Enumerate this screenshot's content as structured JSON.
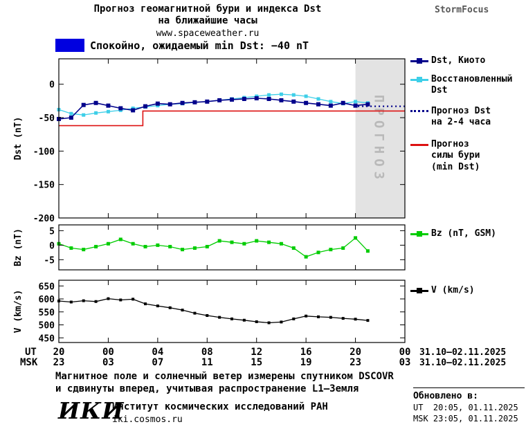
{
  "header": {
    "title_line1": "Прогноз геомагнитной бури и индекса Dst",
    "title_line2": "на ближайшие часы",
    "site": "www.spaceweather.ru",
    "brand": "StormFocus"
  },
  "status_banner": {
    "text": "Спокойно, ожидаемый min Dst: −40 nT",
    "color": "#0000e0"
  },
  "forecast_label": "ПРОГНОЗ",
  "colors": {
    "dst_kyoto": "#00008B",
    "dst_reconstructed": "#3ECFE8",
    "dst_forecast_dotted": "#00008B",
    "storm_forecast": "#DD1111",
    "bz": "#00CC00",
    "v": "#000000",
    "forecast_region_bg": "#E3E3E3",
    "forecast_region_text": "#B9B9B9"
  },
  "legend_dst": {
    "items": [
      {
        "label": "Dst, Киото",
        "color": "#00008B"
      },
      {
        "label": "Восстановленный Dst",
        "color": "#3ECFE8"
      },
      {
        "label": "Прогноз Dst на 2-4 часа",
        "color": "#00008B"
      },
      {
        "label": "Прогноз силы бури (min Dst)",
        "color": "#DD1111"
      }
    ]
  },
  "legend_bz": {
    "label": "Bz (nT, GSM)",
    "color": "#00CC00"
  },
  "legend_v": {
    "label": "V (km/s)",
    "color": "#000000"
  },
  "xaxis": {
    "row1_label": "UT",
    "row2_label": "MSK",
    "tick_hours": [
      0,
      4,
      8,
      12,
      16,
      20,
      24,
      28
    ],
    "row1_ticks": [
      "20",
      "00",
      "04",
      "08",
      "12",
      "16",
      "20",
      "00"
    ],
    "row2_ticks": [
      "23",
      "03",
      "07",
      "11",
      "15",
      "19",
      "23",
      "03"
    ],
    "row1_date": "31.10–02.11.2025",
    "row2_date": "31.10–02.11.2025"
  },
  "chart_data": [
    {
      "type": "line",
      "name": "dst-panel",
      "ylabel": "Dst (nT)",
      "ylim": [
        -200,
        38
      ],
      "yticks": [
        0,
        -50,
        -100,
        -150,
        -200
      ],
      "xlim_hours": [
        0,
        28
      ],
      "forecast_region": [
        24,
        28
      ],
      "x": [
        0,
        1,
        2,
        3,
        4,
        5,
        6,
        7,
        8,
        9,
        10,
        11,
        12,
        13,
        14,
        15,
        16,
        17,
        18,
        19,
        20,
        21,
        22,
        23,
        24,
        25
      ],
      "series": [
        {
          "name": "Прогноз силы бури (min Dst)",
          "color": "#DD1111",
          "width": 1.6,
          "x": [
            0,
            6.8,
            6.8,
            28
          ],
          "y": [
            -62,
            -62,
            -40,
            -40
          ]
        },
        {
          "name": "Прогноз Dst на 2-4 часа",
          "color": "#00008B",
          "style": "dotted",
          "x": [
            24.2,
            28
          ],
          "y": [
            -33,
            -33
          ]
        },
        {
          "name": "Восстановленный Dst",
          "color": "#3ECFE8",
          "marker": "square",
          "marker_size": 5,
          "width": 1.3,
          "y": [
            -38,
            -44,
            -46,
            -43,
            -41,
            -39,
            -36,
            -34,
            -32,
            -30,
            -29,
            -27,
            -26,
            -24,
            -22,
            -20,
            -18,
            -16,
            -15,
            -16,
            -18,
            -22,
            -26,
            -29,
            -26,
            -28
          ]
        },
        {
          "name": "Dst, Киото",
          "color": "#00008B",
          "marker": "square",
          "marker_size": 6,
          "width": 1.6,
          "y": [
            -52,
            -50,
            -31,
            -28,
            -32,
            -36,
            -39,
            -33,
            -29,
            -30,
            -28,
            -27,
            -26,
            -24,
            -23,
            -22,
            -21,
            -22,
            -24,
            -26,
            -28,
            -30,
            -32,
            -28,
            -32,
            -30
          ]
        }
      ]
    },
    {
      "type": "line",
      "name": "bz-panel",
      "ylabel": "Bz (nT)",
      "ylim": [
        -8.5,
        7
      ],
      "yticks": [
        5,
        0,
        -5
      ],
      "xlim_hours": [
        0,
        28
      ],
      "x": [
        0,
        1,
        2,
        3,
        4,
        5,
        6,
        7,
        8,
        9,
        10,
        11,
        12,
        13,
        14,
        15,
        16,
        17,
        18,
        19,
        20,
        21,
        22,
        23,
        24,
        25
      ],
      "series": [
        {
          "name": "Bz (nT, GSM)",
          "color": "#00CC00",
          "marker": "square",
          "marker_size": 5,
          "width": 1.3,
          "y": [
            0.5,
            -1,
            -1.5,
            -0.5,
            0.5,
            2,
            0.5,
            -0.5,
            0,
            -0.5,
            -1.5,
            -1,
            -0.5,
            1.5,
            1,
            0.5,
            1.5,
            1,
            0.5,
            -1,
            -4,
            -2.5,
            -1.5,
            -1,
            2.5,
            -2
          ]
        }
      ]
    },
    {
      "type": "line",
      "name": "v-panel",
      "ylabel": "V (km/s)",
      "ylim": [
        432,
        672
      ],
      "yticks": [
        650,
        600,
        550,
        500,
        450
      ],
      "xlim_hours": [
        0,
        28
      ],
      "x": [
        0,
        1,
        2,
        3,
        4,
        5,
        6,
        7,
        8,
        9,
        10,
        11,
        12,
        13,
        14,
        15,
        16,
        17,
        18,
        19,
        20,
        21,
        22,
        23,
        24,
        25
      ],
      "series": [
        {
          "name": "V (km/s)",
          "color": "#000000",
          "marker": "square",
          "marker_size": 4,
          "width": 1.3,
          "y": [
            592,
            588,
            593,
            590,
            601,
            596,
            599,
            581,
            573,
            566,
            557,
            545,
            536,
            529,
            523,
            518,
            512,
            508,
            511,
            523,
            534,
            531,
            529,
            525,
            522,
            517
          ]
        }
      ]
    }
  ],
  "footer": {
    "note_line1": "Магнитное поле и солнечный ветер измерены спутником DSCOVR",
    "note_line2": "и сдвинуты вперед, учитывая распространение L1–Земля"
  },
  "logo": {
    "text": "ИКИ",
    "institute": "Институт космических исследований РАН",
    "site": "iki.cosmos.ru"
  },
  "updated": {
    "label": "Обновлено в:",
    "ut": "UT  20:05, 01.11.2025",
    "msk": "MSK 23:05, 01.11.2025"
  }
}
